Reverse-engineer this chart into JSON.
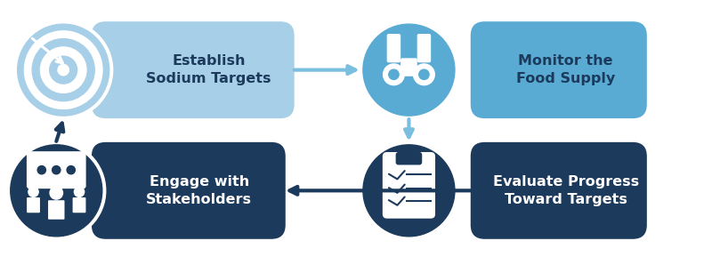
{
  "bg_color": "#ffffff",
  "light_box_color": "#a8cfe8",
  "mid_box_color": "#5aabd4",
  "dark_box_color": "#1b3a5c",
  "arrow_light": "#7bbfe0",
  "arrow_dark": "#1b3a5c",
  "text_dark": "#1b3a5c",
  "text_light": "#ffffff",
  "label1": "Establish\nSodium Targets",
  "label2": "Monitor the\nFood Supply",
  "label3": "Evaluate Progress\nToward Targets",
  "label4": "Engage with\nStakeholders"
}
